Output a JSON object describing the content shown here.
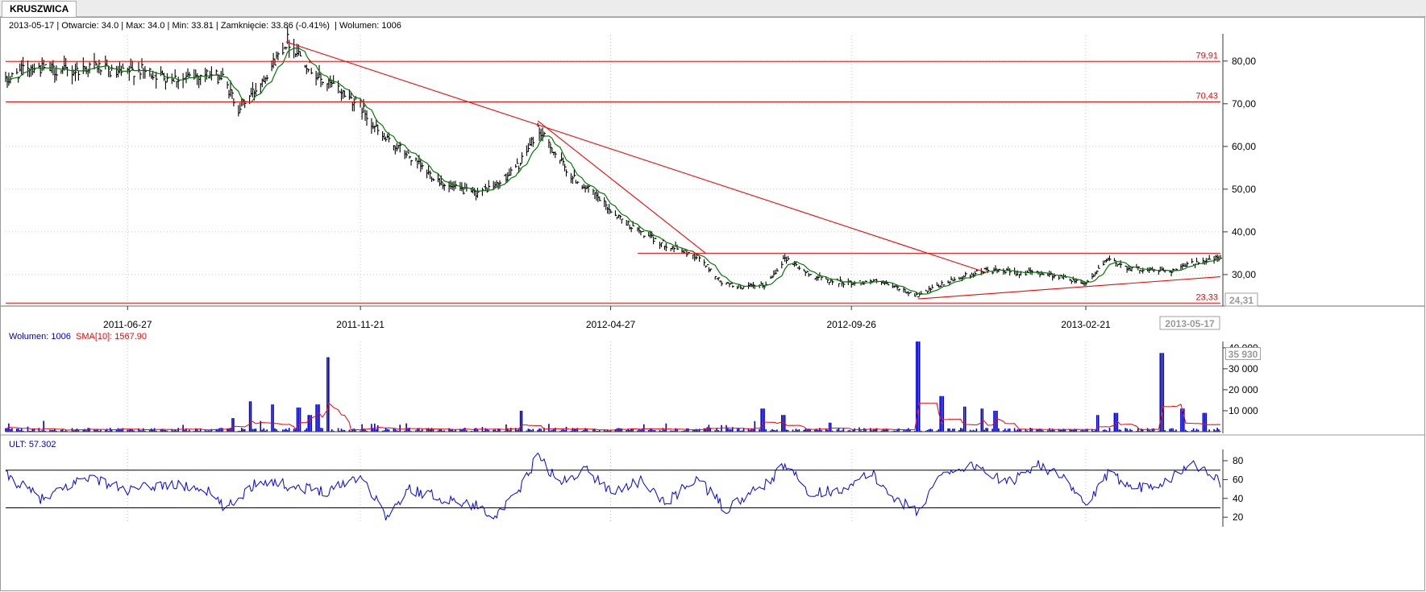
{
  "tab": {
    "label": "KRUSZWICA"
  },
  "info_bar": {
    "date": "2013-05-17",
    "open": "Otwarcie: 34.0",
    "max": "Max: 34.0",
    "min": "Min: 33.81",
    "close": "Zamknięcie: 33.86 (-0.41%)",
    "volume": "Wolumen: 1006"
  },
  "volume_panel": {
    "label": "Wolumen: 1006",
    "sma_label": "SMA[10]: 1567.90",
    "current_value": "35 930"
  },
  "ult_panel": {
    "label": "ULT: 57.302"
  },
  "colors": {
    "price_bars": "#000000",
    "price_ma": "#007a00",
    "trend_lines": "#ff0000",
    "volume_bars": "#0000cc",
    "volume_sma": "#ff0000",
    "ult_line": "#0000ff",
    "ult_levels": "#000000",
    "current_price_box": "#a0a0a0"
  },
  "chart_data": [
    {
      "type": "line",
      "name": "price",
      "x_range": [
        "2011-04-11",
        "2013-05-17"
      ],
      "ylim": [
        23,
        86
      ],
      "y_ticks": [
        "30,00",
        "40,00",
        "50,00",
        "60,00",
        "70,00",
        "80,00"
      ],
      "x_ticks": [
        "2011-06-27",
        "2011-11-21",
        "2012-04-27",
        "2012-09-26",
        "2013-02-21"
      ],
      "current_date_label": "2013-05-17",
      "current_price_label": "24,31",
      "grid": true,
      "price_points": [
        [
          "2011-04-11",
          75.2
        ],
        [
          "2011-04-25",
          78.8
        ],
        [
          "2011-05-09",
          78.0
        ],
        [
          "2011-05-23",
          77.5
        ],
        [
          "2011-06-06",
          79.0
        ],
        [
          "2011-06-20",
          76.8
        ],
        [
          "2011-07-04",
          78.0
        ],
        [
          "2011-07-18",
          76.5
        ],
        [
          "2011-08-01",
          75.8
        ],
        [
          "2011-08-15",
          77.0
        ],
        [
          "2011-08-26",
          76.0
        ],
        [
          "2011-09-05",
          69.0
        ],
        [
          "2011-09-15",
          73.0
        ],
        [
          "2011-09-26",
          79.0
        ],
        [
          "2011-10-06",
          85.0
        ],
        [
          "2011-10-17",
          80.0
        ],
        [
          "2011-10-27",
          75.5
        ],
        [
          "2011-11-07",
          73.5
        ],
        [
          "2011-11-21",
          69.5
        ],
        [
          "2011-12-05",
          62.0
        ],
        [
          "2011-12-16",
          59.5
        ],
        [
          "2012-01-02",
          54.0
        ],
        [
          "2012-01-16",
          50.5
        ],
        [
          "2012-02-01",
          49.0
        ],
        [
          "2012-02-15",
          51.0
        ],
        [
          "2012-03-01",
          56.0
        ],
        [
          "2012-03-12",
          64.0
        ],
        [
          "2012-03-20",
          60.0
        ],
        [
          "2012-04-02",
          53.0
        ],
        [
          "2012-04-16",
          49.0
        ],
        [
          "2012-04-27",
          45.0
        ],
        [
          "2012-05-11",
          41.0
        ],
        [
          "2012-05-25",
          38.0
        ],
        [
          "2012-06-08",
          36.0
        ],
        [
          "2012-06-22",
          34.0
        ],
        [
          "2012-07-06",
          28.0
        ],
        [
          "2012-07-20",
          27.0
        ],
        [
          "2012-08-03",
          27.5
        ],
        [
          "2012-08-15",
          34.0
        ],
        [
          "2012-08-30",
          30.0
        ],
        [
          "2012-09-13",
          28.5
        ],
        [
          "2012-09-26",
          28.0
        ],
        [
          "2012-10-10",
          28.5
        ],
        [
          "2012-10-24",
          27.0
        ],
        [
          "2012-11-07",
          25.0
        ],
        [
          "2012-11-21",
          27.5
        ],
        [
          "2012-12-05",
          29.5
        ],
        [
          "2012-12-19",
          31.0
        ],
        [
          "2013-01-08",
          30.5
        ],
        [
          "2013-01-22",
          30.5
        ],
        [
          "2013-02-05",
          29.5
        ],
        [
          "2013-02-21",
          28.0
        ],
        [
          "2013-03-07",
          33.5
        ],
        [
          "2013-03-21",
          31.5
        ],
        [
          "2013-04-04",
          31.0
        ],
        [
          "2013-04-18",
          31.0
        ],
        [
          "2013-05-02",
          33.0
        ],
        [
          "2013-05-17",
          33.86
        ]
      ],
      "horizontal_levels": [
        {
          "value": 79.91,
          "label": "79,91"
        },
        {
          "value": 70.43,
          "label": "70,43"
        },
        {
          "value": 23.33,
          "label": "23,33"
        },
        {
          "value": 35.0,
          "label": "",
          "from": "2012-05-14"
        }
      ],
      "trend_lines": [
        {
          "from": [
            "2011-10-05",
            84.5
          ],
          "to": [
            "2012-12-20",
            30.5
          ]
        },
        {
          "from": [
            "2012-03-12",
            66.0
          ],
          "to": [
            "2012-06-26",
            35.0
          ]
        },
        {
          "from": [
            "2012-11-07",
            24.3
          ],
          "to": [
            "2013-05-17",
            29.5
          ]
        }
      ]
    },
    {
      "type": "bar",
      "name": "volume",
      "ylim": [
        0,
        43000
      ],
      "y_ticks": [
        "10 000",
        "20 000",
        "30 000",
        "40 000"
      ],
      "series": [
        {
          "name": "Wolumen",
          "spikes": [
            [
              "2011-09-02",
              6500
            ],
            [
              "2011-09-12",
              14500
            ],
            [
              "2011-09-26",
              13000
            ],
            [
              "2011-10-13",
              11500
            ],
            [
              "2011-10-20",
              8000
            ],
            [
              "2011-10-25",
              13000
            ],
            [
              "2011-10-31",
              35500
            ],
            [
              "2012-03-02",
              10000
            ],
            [
              "2012-08-01",
              11000
            ],
            [
              "2012-08-14",
              8000
            ],
            [
              "2012-11-07",
              43000
            ],
            [
              "2012-11-22",
              17000
            ],
            [
              "2012-12-07",
              12000
            ],
            [
              "2012-12-17",
              11000
            ],
            [
              "2012-12-26",
              10000
            ],
            [
              "2013-03-01",
              8000
            ],
            [
              "2013-03-12",
              9000
            ],
            [
              "2013-04-10",
              37500
            ],
            [
              "2013-04-23",
              11000
            ],
            [
              "2013-05-07",
              9000
            ]
          ]
        },
        {
          "name": "SMA[10]",
          "baseline": 1800,
          "bumps": [
            [
              "2011-10-31",
              6500
            ],
            [
              "2012-11-10",
              7500
            ],
            [
              "2013-04-12",
              7500
            ]
          ]
        }
      ]
    },
    {
      "type": "line",
      "name": "ULT",
      "ylim": [
        15,
        92
      ],
      "y_ticks": [
        "20",
        "40",
        "60",
        "80"
      ],
      "levels": [
        30,
        70
      ],
      "key_points": [
        [
          "2011-04-11",
          65
        ],
        [
          "2011-05-05",
          38
        ],
        [
          "2011-06-01",
          64
        ],
        [
          "2011-06-27",
          48
        ],
        [
          "2011-07-20",
          55
        ],
        [
          "2011-08-15",
          50
        ],
        [
          "2011-08-28",
          28
        ],
        [
          "2011-09-18",
          60
        ],
        [
          "2011-10-12",
          52
        ],
        [
          "2011-10-31",
          48
        ],
        [
          "2011-11-21",
          65
        ],
        [
          "2011-12-08",
          20
        ],
        [
          "2011-12-22",
          50
        ],
        [
          "2012-01-12",
          40
        ],
        [
          "2012-02-02",
          32
        ],
        [
          "2012-02-16",
          22
        ],
        [
          "2012-03-01",
          50
        ],
        [
          "2012-03-12",
          86
        ],
        [
          "2012-03-26",
          55
        ],
        [
          "2012-04-10",
          72
        ],
        [
          "2012-04-27",
          48
        ],
        [
          "2012-05-16",
          58
        ],
        [
          "2012-06-01",
          35
        ],
        [
          "2012-06-20",
          62
        ],
        [
          "2012-07-09",
          28
        ],
        [
          "2012-07-20",
          40
        ],
        [
          "2012-08-03",
          55
        ],
        [
          "2012-08-15",
          75
        ],
        [
          "2012-09-01",
          45
        ],
        [
          "2012-09-26",
          52
        ],
        [
          "2012-10-08",
          68
        ],
        [
          "2012-10-22",
          42
        ],
        [
          "2012-11-07",
          25
        ],
        [
          "2012-11-22",
          68
        ],
        [
          "2012-12-14",
          75
        ],
        [
          "2013-01-02",
          55
        ],
        [
          "2013-01-22",
          78
        ],
        [
          "2013-02-07",
          60
        ],
        [
          "2013-02-21",
          32
        ],
        [
          "2013-03-07",
          65
        ],
        [
          "2013-03-28",
          52
        ],
        [
          "2013-04-15",
          60
        ],
        [
          "2013-04-29",
          78
        ],
        [
          "2013-05-10",
          66
        ],
        [
          "2013-05-17",
          57.3
        ]
      ]
    }
  ]
}
